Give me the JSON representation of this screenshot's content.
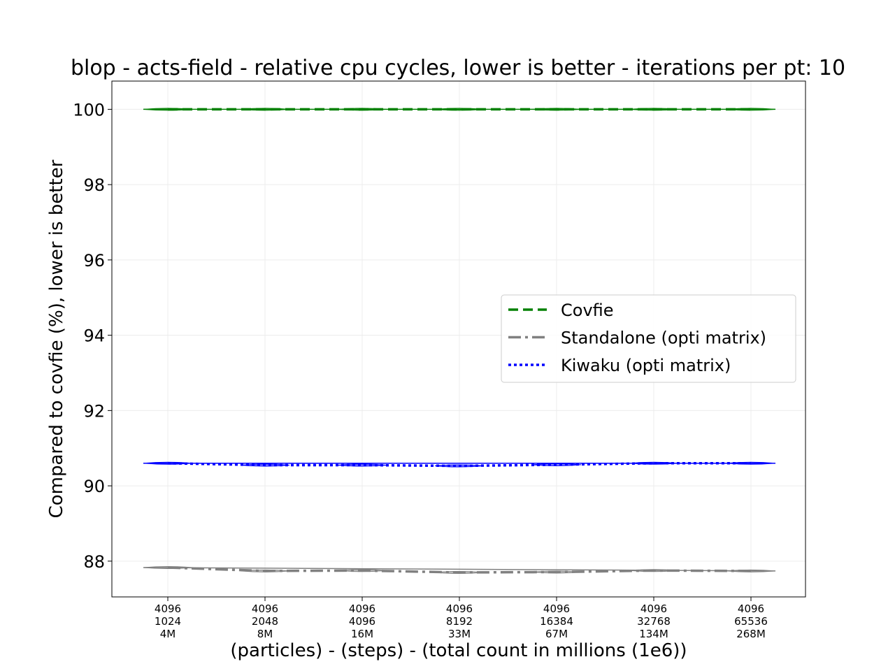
{
  "chart_data": {
    "type": "line",
    "title": "blop - acts-field - relative cpu cycles, lower is better - iterations per pt: 10",
    "xlabel": "(particles) - (steps) - (total count in millions (1e6))",
    "ylabel": "Compared to covfie (%), lower is better",
    "categories": [
      [
        "4096",
        "1024",
        "4M"
      ],
      [
        "4096",
        "2048",
        "8M"
      ],
      [
        "4096",
        "4096",
        "16M"
      ],
      [
        "4096",
        "8192",
        "33M"
      ],
      [
        "4096",
        "16384",
        "67M"
      ],
      [
        "4096",
        "32768",
        "134M"
      ],
      [
        "4096",
        "65536",
        "268M"
      ]
    ],
    "ylim": [
      87.05,
      100.75
    ],
    "yticks": [
      88,
      90,
      92,
      94,
      96,
      98,
      100
    ],
    "grid": true,
    "legend_position": "center-right",
    "series": [
      {
        "name": "Covfie",
        "values": [
          100.0,
          100.0,
          100.0,
          100.0,
          100.0,
          100.0,
          100.0
        ],
        "color": "#008000",
        "dash": "dashed"
      },
      {
        "name": "Standalone (opti matrix)",
        "values": [
          87.83,
          87.74,
          87.75,
          87.7,
          87.71,
          87.75,
          87.74
        ],
        "color": "#808080",
        "dash": "dashdot"
      },
      {
        "name": "Kiwaku (opti matrix)",
        "values": [
          90.6,
          90.55,
          90.55,
          90.53,
          90.56,
          90.6,
          90.6
        ],
        "color": "#0000ff",
        "dash": "dotted"
      }
    ]
  }
}
